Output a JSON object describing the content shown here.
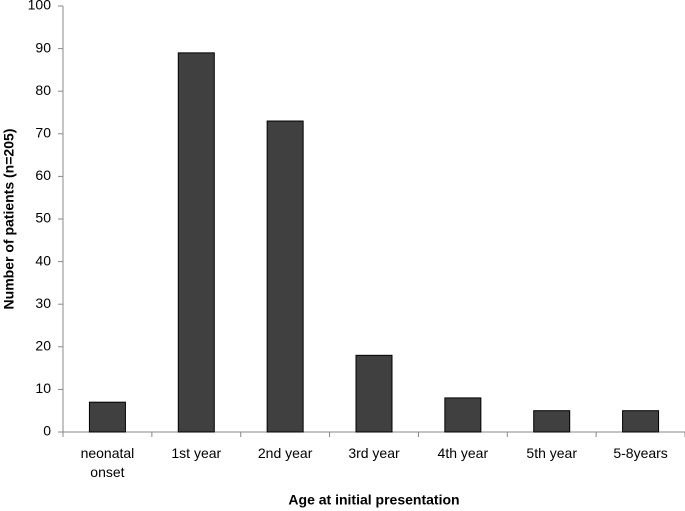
{
  "chart_data": {
    "type": "bar",
    "categories": [
      "neonatal onset",
      "1st year",
      "2nd year",
      "3rd year",
      "4th year",
      "5th year",
      "5-8years"
    ],
    "values": [
      7,
      89,
      73,
      18,
      8,
      5,
      5
    ],
    "color": "#404040",
    "xlabel": "Age at initial presentation",
    "ylabel": "Number of patients (n=205)",
    "ylim": [
      0,
      100
    ],
    "yticks": [
      0,
      10,
      20,
      30,
      40,
      50,
      60,
      70,
      80,
      90,
      100
    ],
    "grid": false
  }
}
